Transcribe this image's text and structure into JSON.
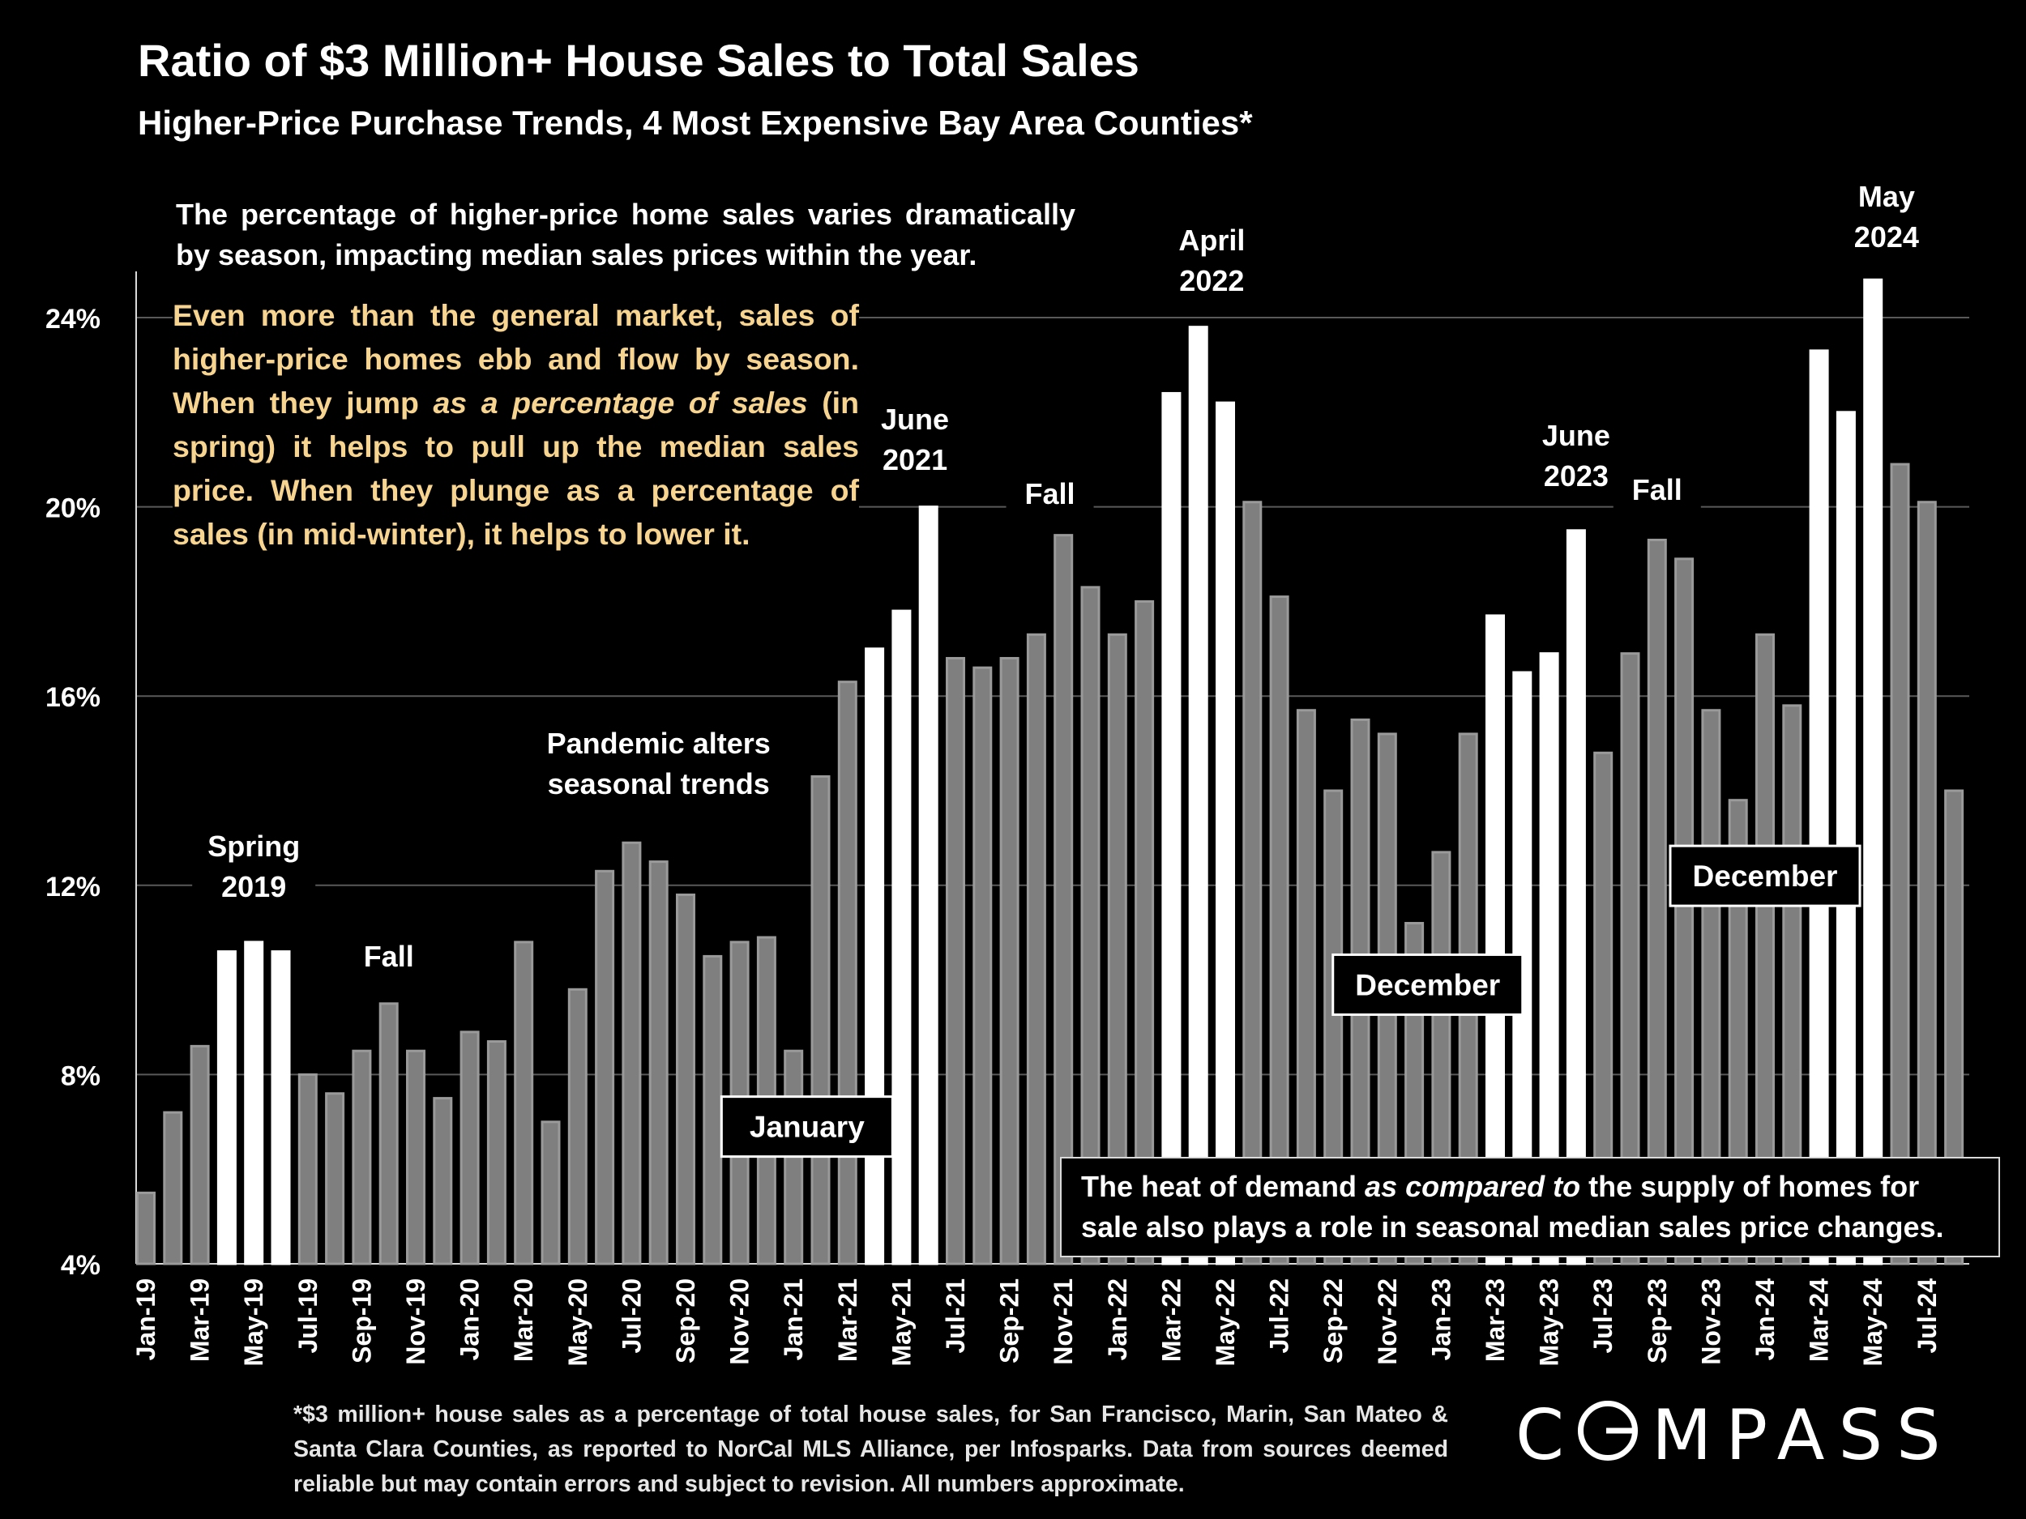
{
  "title": "Ratio of $3 Million+ House Sales to Total Sales",
  "subtitle": "Higher-Price Purchase Trends, 4 Most Expensive Bay Area Counties*",
  "note_white": "The percentage of higher-price home sales varies dramatically by season, impacting median sales prices within the year.",
  "note_gold_parts": {
    "p1": "Even more than the general market, sales of higher-price homes ebb and flow by season. When they jump ",
    "p2": "as a percentage of sales",
    "p3": " (in spring) it helps to pull up the median sales price. When they plunge as a percentage of sales (in mid-winter), it helps to lower it."
  },
  "note_box_parts": {
    "p1": "The heat of demand ",
    "p2": "as compared to",
    "p3": " the supply of homes for sale also plays a role in seasonal median sales price changes."
  },
  "footnote": "*$3 million+ house sales as a percentage of total house sales, for San Francisco, Marin, San Mateo & Santa Clara Counties, as reported to NorCal MLS Alliance, per Infosparks. Data from sources deemed reliable but may contain errors and subject to revision. All numbers approximate.",
  "logo": {
    "c": "C",
    "rest": "MPASS"
  },
  "colors": {
    "background": "#000000",
    "bar_default": "#7f7f7f",
    "bar_default_edge": "#9a9a9a",
    "bar_highlight": "#ffffff",
    "note_gold": "#f7d591",
    "gridline": "#595959"
  },
  "chart_data": {
    "type": "bar",
    "ylim": [
      4,
      26
    ],
    "yticks": [
      4,
      8,
      12,
      16,
      20,
      24
    ],
    "ytick_labels": [
      "4%",
      "8%",
      "12%",
      "16%",
      "20%",
      "24%"
    ],
    "grid": true,
    "categories": [
      "Jan-19",
      "Feb-19",
      "Mar-19",
      "Apr-19",
      "May-19",
      "Jun-19",
      "Jul-19",
      "Aug-19",
      "Sep-19",
      "Oct-19",
      "Nov-19",
      "Dec-19",
      "Jan-20",
      "Feb-20",
      "Mar-20",
      "Apr-20",
      "May-20",
      "Jun-20",
      "Jul-20",
      "Aug-20",
      "Sep-20",
      "Oct-20",
      "Nov-20",
      "Dec-20",
      "Jan-21",
      "Feb-21",
      "Mar-21",
      "Apr-21",
      "May-21",
      "Jun-21",
      "Jul-21",
      "Aug-21",
      "Sep-21",
      "Oct-21",
      "Nov-21",
      "Dec-21",
      "Jan-22",
      "Feb-22",
      "Mar-22",
      "Apr-22",
      "May-22",
      "Jun-22",
      "Jul-22",
      "Aug-22",
      "Sep-22",
      "Oct-22",
      "Nov-22",
      "Dec-22",
      "Jan-23",
      "Feb-23",
      "Mar-23",
      "Apr-23",
      "May-23",
      "Jun-23",
      "Jul-23",
      "Aug-23",
      "Sep-23",
      "Oct-23",
      "Nov-23",
      "Dec-23",
      "Jan-24",
      "Feb-24",
      "Mar-24",
      "Apr-24",
      "May-24",
      "Jun-24",
      "Jul-24",
      "Aug-24"
    ],
    "xtick_labels": [
      "Jan-19",
      "",
      "Mar-19",
      "",
      "May-19",
      "",
      "Jul-19",
      "",
      "Sep-19",
      "",
      "Nov-19",
      "",
      "Jan-20",
      "",
      "Mar-20",
      "",
      "May-20",
      "",
      "Jul-20",
      "",
      "Sep-20",
      "",
      "Nov-20",
      "",
      "Jan-21",
      "",
      "Mar-21",
      "",
      "May-21",
      "",
      "Jul-21",
      "",
      "Sep-21",
      "",
      "Nov-21",
      "",
      "Jan-22",
      "",
      "Mar-22",
      "",
      "May-22",
      "",
      "Jul-22",
      "",
      "Sep-22",
      "",
      "Nov-22",
      "",
      "Jan-23",
      "",
      "Mar-23",
      "",
      "May-23",
      "",
      "Jul-23",
      "",
      "Sep-23",
      "",
      "Nov-23",
      "",
      "Jan-24",
      "",
      "Mar-24",
      "",
      "May-24",
      "",
      "Jul-24",
      ""
    ],
    "values": [
      5.5,
      7.2,
      8.6,
      10.6,
      10.8,
      10.6,
      8.0,
      7.6,
      8.5,
      9.5,
      8.5,
      7.5,
      8.9,
      8.7,
      10.8,
      7.0,
      9.8,
      12.3,
      12.9,
      12.5,
      11.8,
      10.5,
      10.8,
      10.9,
      8.5,
      14.3,
      16.3,
      17.0,
      17.8,
      20.0,
      16.8,
      16.6,
      16.8,
      17.3,
      19.4,
      18.3,
      17.3,
      18.0,
      22.4,
      23.8,
      22.2,
      20.1,
      18.1,
      15.7,
      14.0,
      15.5,
      15.2,
      11.2,
      12.7,
      15.2,
      17.7,
      16.5,
      16.9,
      19.5,
      14.8,
      16.9,
      19.3,
      18.9,
      15.7,
      13.8,
      17.3,
      15.8,
      23.3,
      22.0,
      24.8,
      20.9,
      20.1,
      14.0
    ],
    "highlight": [
      false,
      false,
      false,
      true,
      true,
      true,
      false,
      false,
      false,
      false,
      false,
      false,
      false,
      false,
      false,
      false,
      false,
      false,
      false,
      false,
      false,
      false,
      false,
      false,
      false,
      false,
      false,
      true,
      true,
      true,
      false,
      false,
      false,
      false,
      false,
      false,
      false,
      false,
      true,
      true,
      true,
      false,
      false,
      false,
      false,
      false,
      false,
      false,
      false,
      false,
      true,
      true,
      true,
      true,
      false,
      false,
      false,
      false,
      false,
      false,
      false,
      false,
      true,
      true,
      true,
      false,
      false,
      false
    ],
    "annotations": [
      {
        "index": 4,
        "lines": [
          "Spring",
          "2019"
        ]
      },
      {
        "index": 9,
        "lines": [
          "Fall"
        ]
      },
      {
        "index": 19,
        "lines": [
          "Pandemic alters",
          "seasonal trends"
        ]
      },
      {
        "index": 28.5,
        "lines": [
          "June",
          "2021"
        ]
      },
      {
        "index": 33.5,
        "lines": [
          "Fall"
        ]
      },
      {
        "index": 39.5,
        "lines": [
          "April",
          "2022"
        ]
      },
      {
        "index": 53,
        "lines": [
          "June",
          "2023"
        ]
      },
      {
        "index": 56,
        "lines": [
          "Fall"
        ]
      },
      {
        "index": 64.5,
        "lines": [
          "May",
          "2024"
        ]
      }
    ],
    "boxed_labels": [
      {
        "text": "January",
        "index": 24.5,
        "value": 6.9
      },
      {
        "text": "December",
        "index": 47.5,
        "value": 9.9
      },
      {
        "text": "December",
        "index": 60.0,
        "value": 12.2
      }
    ]
  }
}
